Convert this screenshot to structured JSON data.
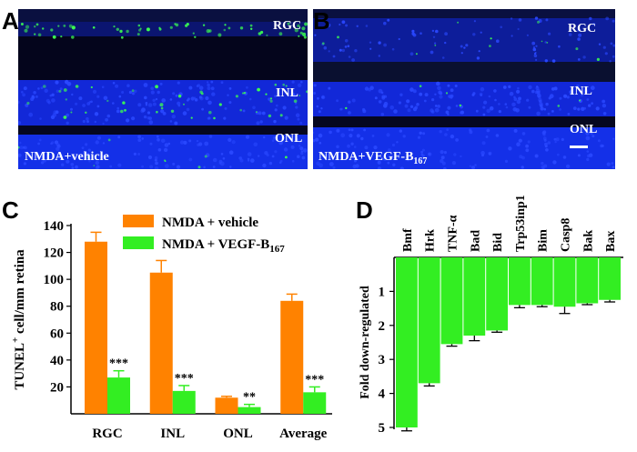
{
  "panels": {
    "a": {
      "letter": "A",
      "caption": "NMDA+vehicle",
      "layers": [
        "RGC",
        "INL",
        "ONL"
      ]
    },
    "b": {
      "letter": "B",
      "caption": "NMDA+VEGF-B",
      "caption_sub": "167",
      "layers": [
        "RGC",
        "INL",
        "ONL"
      ]
    },
    "c": {
      "letter": "C"
    },
    "d": {
      "letter": "D"
    }
  },
  "colors": {
    "orange": "#ff8200",
    "green": "#33ee22",
    "nuclei_blue": "#1428e6",
    "band_dark": "#05062a",
    "tunel_green": "#3cff50"
  },
  "chart_data": [
    {
      "type": "bar",
      "categories": [
        "RGC",
        "INL",
        "ONL",
        "Average"
      ],
      "ylabel": "TUNEL",
      "ylabel_sup": "+",
      "ylabel_rest": " cell/mm retina",
      "ylim": [
        0,
        140
      ],
      "yticks": [
        20,
        40,
        60,
        80,
        100,
        120,
        140
      ],
      "series": [
        {
          "name": "NMDA + vehicle",
          "color": "#ff8200",
          "values": [
            128,
            105,
            12,
            84
          ],
          "errors": [
            7,
            9,
            1,
            5
          ]
        },
        {
          "name": "NMDA + VEGF-B",
          "name_sub": "167",
          "color": "#33ee22",
          "values": [
            27,
            17,
            5,
            16
          ],
          "errors": [
            5,
            4,
            2,
            4
          ]
        }
      ],
      "significance": [
        "***",
        "***",
        "**",
        "***"
      ]
    },
    {
      "type": "bar",
      "orientation": "downward",
      "categories": [
        "Bmf",
        "Hrk",
        "TNF-α",
        "Bad",
        "Bid",
        "Trp53inp1",
        "Bim",
        "Casp8",
        "Bak",
        "Bax"
      ],
      "values": [
        5.0,
        3.7,
        2.55,
        2.3,
        2.15,
        1.4,
        1.4,
        1.45,
        1.35,
        1.25
      ],
      "errors": [
        0.1,
        0.08,
        0.06,
        0.15,
        0.05,
        0.08,
        0.05,
        0.2,
        0.04,
        0.06
      ],
      "ylabel": "Fold down-regulated",
      "ylim": [
        0,
        5
      ],
      "yticks": [
        1,
        2,
        3,
        4,
        5
      ],
      "color": "#33ee22"
    }
  ]
}
